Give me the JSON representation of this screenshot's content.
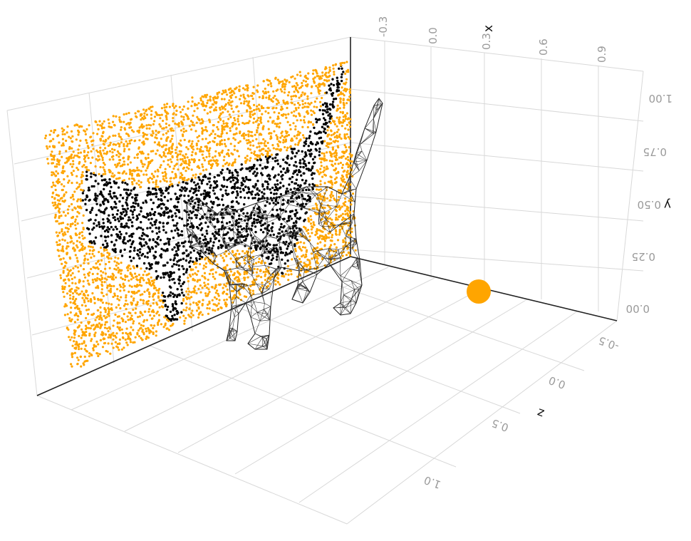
{
  "chart_data": {
    "type": "scatter",
    "title": "",
    "axes": {
      "x": {
        "label": "x",
        "ticks": [
          "-0.3",
          "0.0",
          "0.3",
          "0.6",
          "0.9"
        ]
      },
      "y": {
        "label": "y",
        "ticks": [
          "0.00",
          "0.25",
          "0.50",
          "0.75",
          "1.00"
        ]
      },
      "z": {
        "label": "z",
        "ticks": [
          "-0.5",
          "0.0",
          "0.5",
          "1.0"
        ]
      }
    },
    "series": [
      {
        "kind": "points",
        "colors": {
          "background": "#FFA500",
          "silhouette": "#000000"
        }
      },
      {
        "kind": "wireframe-mesh",
        "color": "#333333"
      },
      {
        "kind": "marker",
        "color": "#FFA500",
        "x": 0.3,
        "y": 0.0,
        "z": -0.5
      }
    ],
    "grid": true
  }
}
